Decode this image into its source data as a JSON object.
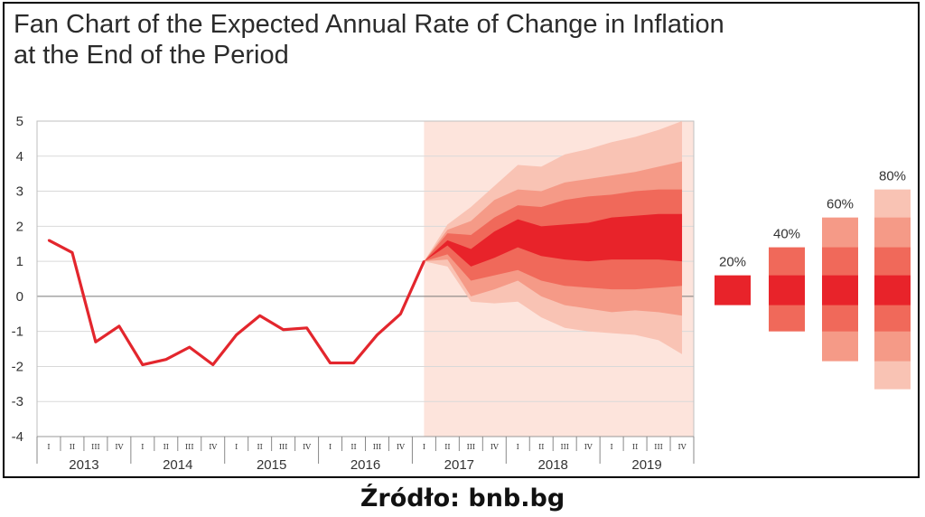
{
  "title_line1": "Fan Chart of the Expected Annual Rate of Change in Inflation",
  "title_line2": "at the End of the Period",
  "source": "Źródło: bnb.bg",
  "colors": {
    "line": "#e3262d",
    "band20": "#e8232a",
    "band40": "#f0695a",
    "band60": "#f59a87",
    "band80": "#f9c3b4",
    "forecast_bg": "#fde4dc"
  },
  "chart_data": {
    "type": "line",
    "title": "Fan Chart of the Expected Annual Rate of Change in Inflation at the End of the Period",
    "xlabel": "",
    "ylabel": "",
    "ylim": [
      -4,
      5
    ],
    "y_ticks": [
      5,
      4,
      3,
      2,
      1,
      0,
      -1,
      -2,
      -3,
      -4
    ],
    "quarter_labels": [
      "I",
      "II",
      "III",
      "IV"
    ],
    "years": [
      "2013",
      "2014",
      "2015",
      "2016",
      "2017",
      "2018",
      "2019"
    ],
    "history": {
      "name": "Inflation",
      "values": [
        1.6,
        1.25,
        -1.3,
        -0.85,
        -1.95,
        -1.8,
        -1.45,
        -1.95,
        -1.1,
        -0.55,
        -0.95,
        -0.9,
        -1.9,
        -1.9,
        -1.1,
        -0.5,
        1.0
      ]
    },
    "forecast_start_index": 16,
    "fan": {
      "central_upper": [
        1.0,
        1.6,
        1.35,
        1.85,
        2.2,
        2.0,
        2.05,
        2.1,
        2.25,
        2.3,
        2.35,
        2.35
      ],
      "central_lower": [
        1.0,
        1.45,
        0.85,
        1.1,
        1.4,
        1.15,
        1.05,
        1.0,
        1.05,
        1.05,
        1.05,
        1.0
      ],
      "b40_upper": [
        1.0,
        1.8,
        1.75,
        2.25,
        2.6,
        2.55,
        2.75,
        2.85,
        2.9,
        3.0,
        3.05,
        3.05
      ],
      "b40_lower": [
        1.0,
        1.2,
        0.45,
        0.6,
        0.75,
        0.45,
        0.3,
        0.25,
        0.2,
        0.2,
        0.25,
        0.3
      ],
      "b60_upper": [
        1.0,
        1.9,
        2.15,
        2.75,
        3.05,
        3.0,
        3.25,
        3.35,
        3.45,
        3.55,
        3.7,
        3.85
      ],
      "b60_lower": [
        1.0,
        1.05,
        0.0,
        0.2,
        0.45,
        0.0,
        -0.25,
        -0.35,
        -0.45,
        -0.4,
        -0.45,
        -0.55
      ],
      "b80_upper": [
        1.0,
        2.05,
        2.55,
        3.15,
        3.75,
        3.7,
        4.05,
        4.2,
        4.4,
        4.55,
        4.75,
        5.0
      ],
      "b80_lower": [
        1.0,
        0.85,
        -0.15,
        -0.2,
        -0.15,
        -0.6,
        -0.9,
        -1.0,
        -1.05,
        -1.1,
        -1.25,
        -1.65
      ]
    },
    "legend": {
      "labels": [
        "20%",
        "40%",
        "60%",
        "80%"
      ],
      "ranges": {
        "20%": [
          [
            -0.25,
            0.6
          ]
        ],
        "40%": [
          [
            -1.0,
            1.4
          ]
        ],
        "60%": [
          [
            -1.85,
            2.25
          ]
        ],
        "80%": [
          [
            -2.65,
            3.05
          ]
        ]
      }
    }
  }
}
